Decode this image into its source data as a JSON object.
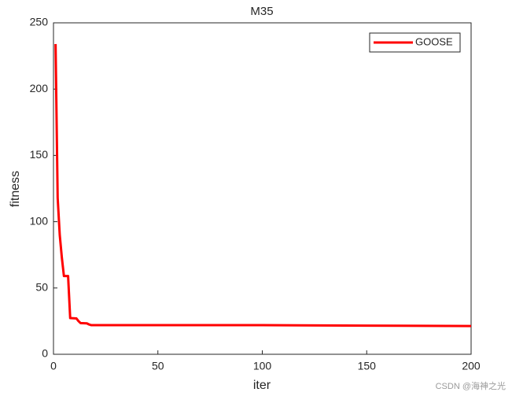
{
  "chart_data": {
    "type": "line",
    "title": "M35",
    "xlabel": "iter",
    "ylabel": "fitness",
    "x": [
      1,
      2,
      3,
      4,
      5,
      7,
      8,
      11,
      12,
      13,
      16,
      17,
      18,
      50,
      100,
      150,
      200
    ],
    "series": [
      {
        "name": "GOOSE",
        "color": "#ff0000",
        "values": [
          234,
          118,
          90,
          73,
          59,
          59,
          27.3,
          27,
          25,
          23.5,
          23.3,
          22.5,
          22,
          22,
          22,
          21.6,
          21.3
        ]
      }
    ],
    "xlim": [
      0,
      200
    ],
    "xticks": [
      0,
      50,
      100,
      150,
      200
    ],
    "ylim": [
      0,
      250
    ],
    "yticks": [
      0,
      50,
      100,
      150,
      200,
      250
    ],
    "grid": false,
    "legend": "northeast"
  },
  "watermark": "CSDN @海神之光"
}
